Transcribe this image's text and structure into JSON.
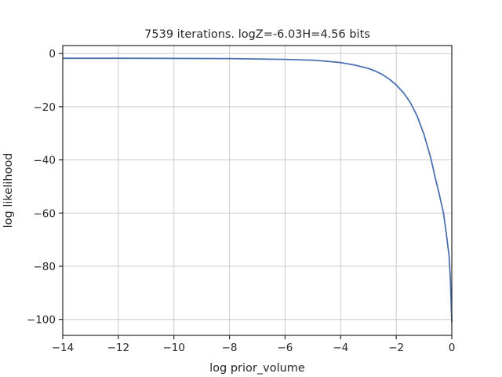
{
  "chart_data": {
    "type": "line",
    "title": "7539 iterations. logZ=-6.03H=4.56 bits",
    "xlabel": "log prior_volume",
    "ylabel": "log likelihood",
    "xlim": [
      -14.0,
      0.0
    ],
    "ylim": [
      -106.0,
      3.0
    ],
    "xticks": [
      -14,
      -12,
      -10,
      -8,
      -6,
      -4,
      -2,
      0
    ],
    "xtick_labels": [
      "−14",
      "−12",
      "−10",
      "−8",
      "−6",
      "−4",
      "−2",
      "0"
    ],
    "yticks": [
      0,
      -20,
      -40,
      -60,
      -80,
      -100
    ],
    "ytick_labels": [
      "0",
      "−20",
      "−40",
      "−60",
      "−80",
      "−100"
    ],
    "grid": true,
    "series": [
      {
        "color": "#4c72b0",
        "x": [
          -14.0,
          -12.0,
          -10.0,
          -8.0,
          -6.0,
          -5.0,
          -4.5,
          -4.0,
          -3.5,
          -3.0,
          -2.75,
          -2.5,
          -2.25,
          -2.0,
          -1.75,
          -1.5,
          -1.25,
          -1.0,
          -0.75,
          -0.6,
          -0.45,
          -0.3,
          -0.2,
          -0.1,
          -0.05,
          0.0
        ],
        "y": [
          -1.8,
          -1.8,
          -1.85,
          -1.9,
          -2.2,
          -2.5,
          -2.9,
          -3.4,
          -4.3,
          -5.6,
          -6.6,
          -7.9,
          -9.6,
          -11.8,
          -14.6,
          -18.3,
          -23.4,
          -30.5,
          -39.5,
          -46.5,
          -53.0,
          -60.0,
          -67.5,
          -76.0,
          -85.0,
          -101.0
        ]
      }
    ]
  }
}
